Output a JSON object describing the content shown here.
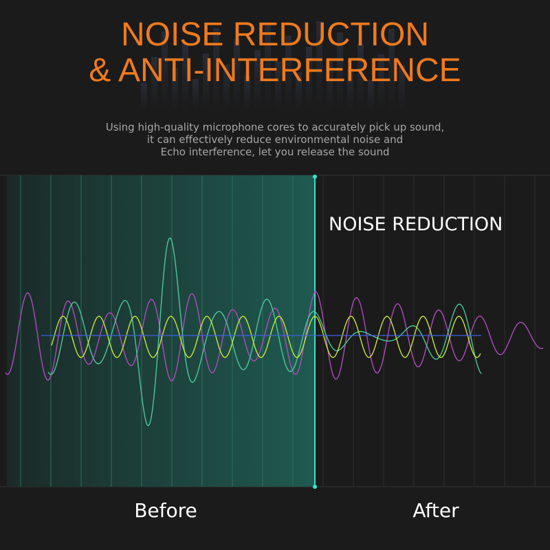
{
  "header": {
    "title_lines": [
      "NOISE REDUCTION",
      "& ANTI-INTERFERENCE"
    ],
    "description_lines": [
      "Using high-quality microphone cores to accurately pick up sound,",
      "it can effectively reduce environmental noise and",
      "Echo interference, let you release the sound"
    ]
  },
  "panel": {
    "label": "NOISE REDUCTION",
    "before": "Before",
    "after": "After"
  }
}
